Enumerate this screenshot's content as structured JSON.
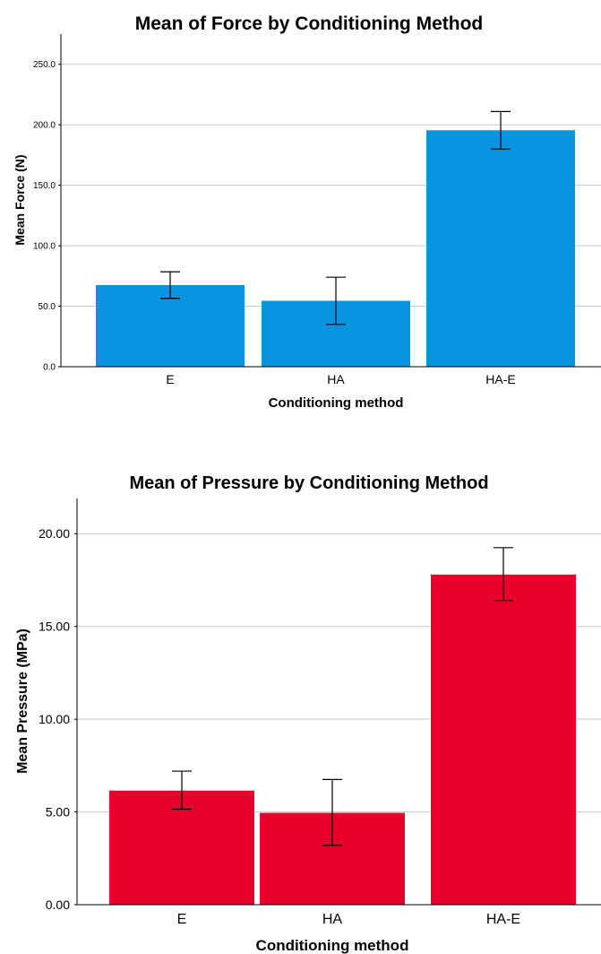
{
  "chart_data": [
    {
      "type": "bar",
      "title": "Mean of Force by Conditioning Method",
      "xlabel": "Conditioning method",
      "ylabel": "Mean Force (N)",
      "categories": [
        "E",
        "HA",
        "HA-E"
      ],
      "values": [
        67.5,
        54.5,
        195.5
      ],
      "error_bars": [
        [
          56.5,
          78.5
        ],
        [
          35.0,
          74.0
        ],
        [
          180.0,
          211.0
        ]
      ],
      "ylim": [
        0,
        275
      ],
      "yticks": [
        0,
        50,
        100,
        150,
        200,
        250
      ],
      "ytick_labels": [
        "0.0",
        "50.0",
        "100.0",
        "150.0",
        "200.0",
        "250.0"
      ],
      "bar_color": "#0a94e0",
      "grid": true
    },
    {
      "type": "bar",
      "title": "Mean of Pressure by Conditioning Method",
      "xlabel": "Conditioning method",
      "ylabel": "Mean Pressure (MPa)",
      "categories": [
        "E",
        "HA",
        "HA-E"
      ],
      "values": [
        6.15,
        4.95,
        17.8
      ],
      "error_bars": [
        [
          5.15,
          7.2
        ],
        [
          3.2,
          6.75
        ],
        [
          16.4,
          19.25
        ]
      ],
      "ylim": [
        0,
        21.9
      ],
      "yticks": [
        0,
        5,
        10,
        15,
        20
      ],
      "ytick_labels": [
        "0.00",
        "5.00",
        "10.00",
        "15.00",
        "20.00"
      ],
      "bar_color": "#e8002d",
      "grid": true
    }
  ]
}
